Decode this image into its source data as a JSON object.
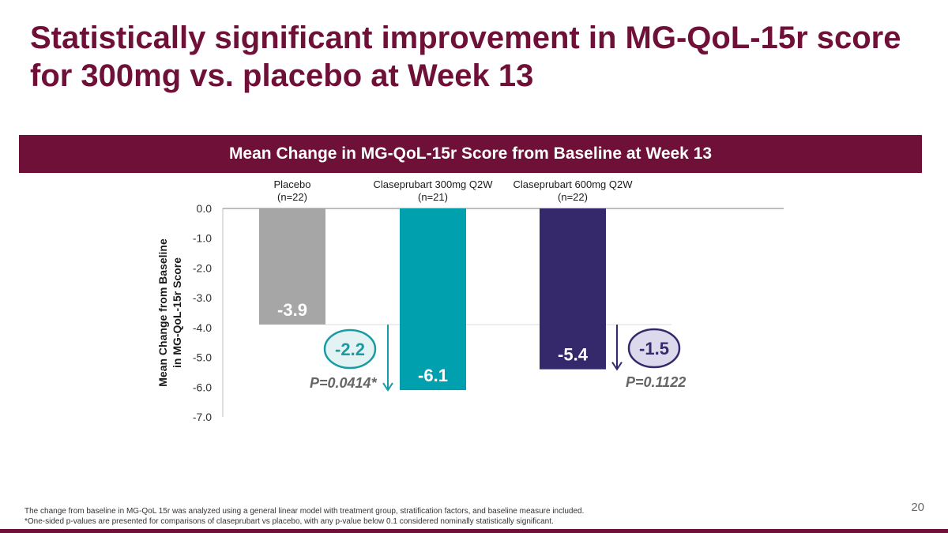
{
  "title": "Statistically significant improvement in MG-QoL-15r score for 300mg vs. placebo at Week 13",
  "chart_data": {
    "type": "bar",
    "title": "Mean Change in MG-QoL-15r Score from Baseline at Week 13",
    "xlabel": "",
    "ylabel_lines": [
      "Mean Change from Baseline",
      "in MG-QoL-15r Score"
    ],
    "ylim": [
      -7.0,
      0.0
    ],
    "yticks": [
      "0.0",
      "-1.0",
      "-2.0",
      "-3.0",
      "-4.0",
      "-5.0",
      "-6.0",
      "-7.0"
    ],
    "yticks_values": [
      0,
      -1,
      -2,
      -3,
      -4,
      -5,
      -6,
      -7
    ],
    "categories": [
      {
        "name": "Placebo",
        "n": "(n=22)"
      },
      {
        "name": "Claseprubart 300mg Q2W",
        "n": "(n=21)"
      },
      {
        "name": "Claseprubart 600mg Q2W",
        "n": "(n=22)"
      }
    ],
    "values": [
      -3.9,
      -6.1,
      -5.4
    ],
    "value_labels": [
      "-3.9",
      "-6.1",
      "-5.4"
    ],
    "colors": [
      "#a6a6a6",
      "#00a0ae",
      "#35296b"
    ],
    "comparisons": [
      {
        "vs": "Claseprubart 300mg Q2W",
        "difference": "-2.2",
        "p_value": "P=0.0414*",
        "color": "#1a9aa3",
        "fill": "#e3f3f4"
      },
      {
        "vs": "Claseprubart 600mg Q2W",
        "difference": "-1.5",
        "p_value": "P=0.1122",
        "color": "#35296b",
        "fill": "#dcd9ec"
      }
    ]
  },
  "footnotes": [
    "The change from baseline in MG-QoL 15r was analyzed using a general linear model with treatment group, stratification factors, and baseline measure included.",
    "*One-sided p-values are presented for comparisons of claseprubart vs placebo, with any p-value below 0.1 considered nominally statistically significant."
  ],
  "page_number": "20"
}
